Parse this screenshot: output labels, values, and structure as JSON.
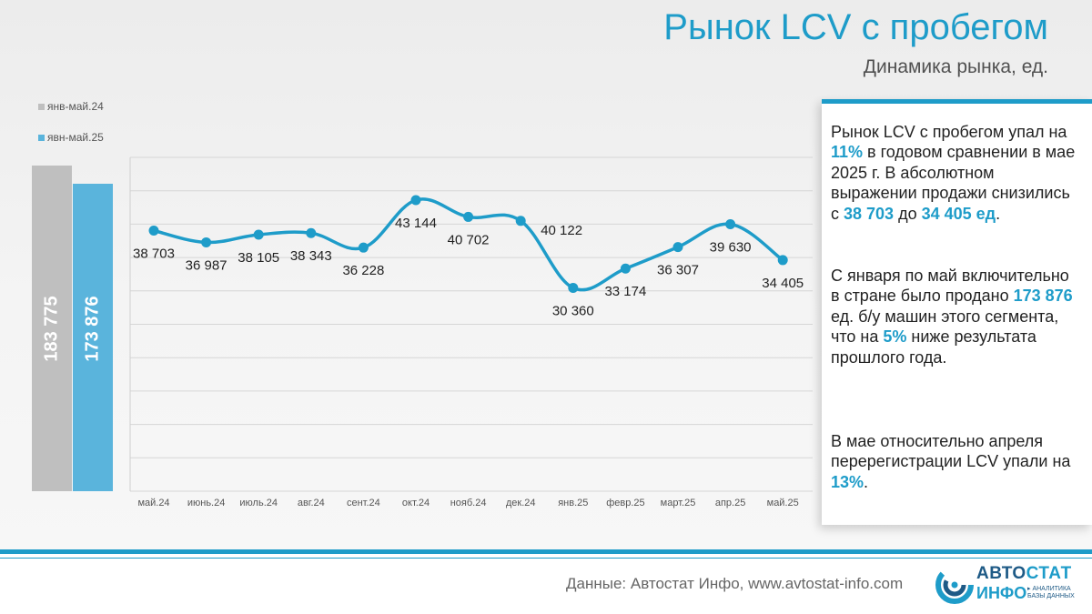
{
  "header": {
    "title": "Рынок LCV с пробегом",
    "subtitle": "Динамика рынка, ед."
  },
  "ytd": {
    "legend": [
      {
        "label": "янв-май.24",
        "color": "#bfbfbf"
      },
      {
        "label": "явн-май.25",
        "color": "#5ab4dc"
      }
    ],
    "bars": [
      {
        "label": "183 775",
        "value": 183775,
        "color": "#bfbfbf"
      },
      {
        "label": "173 876",
        "value": 173876,
        "color": "#5ab4dc"
      }
    ]
  },
  "chart_data": {
    "type": "line",
    "categories": [
      "май.24",
      "июнь.24",
      "июль.24",
      "авг.24",
      "сент.24",
      "окт.24",
      "нояб.24",
      "дек.24",
      "янв.25",
      "февр.25",
      "март.25",
      "апр.25",
      "май.25"
    ],
    "values": [
      38703,
      36987,
      38105,
      38343,
      36228,
      43144,
      40702,
      40122,
      30360,
      33174,
      36307,
      39630,
      34405
    ],
    "value_labels": [
      "38 703",
      "36 987",
      "38 105",
      "38 343",
      "36 228",
      "43 144",
      "40 702",
      "40 122",
      "30 360",
      "33 174",
      "36 307",
      "39 630",
      "34 405"
    ],
    "color": "#1e9cc9",
    "smooth": true,
    "grid": true,
    "ylim": [
      0,
      50000
    ]
  },
  "panel": {
    "p1": [
      "Рынок LCV с пробегом упал на ",
      "11%",
      " в годовом сравнении в мае 2025 г. В абсолютном выражении продажи снизились с ",
      "38 703",
      " до ",
      "34 405 ед",
      "."
    ],
    "p2": [
      "С января по май включительно в стране было продано ",
      "173 876",
      " ед. б/у машин этого сегмента, что на ",
      "5%",
      " ниже результата прошлого года."
    ],
    "p3": [
      "В мае относительно апреля перерегистрации LCV упали на ",
      "13%",
      "."
    ]
  },
  "footer": {
    "source": "Данные: Автостат Инфо, www.avtostat-info.com",
    "logo_top_dark": "АВТО",
    "logo_top_light": "СТАТ",
    "logo_bottom": "ИНФО",
    "logo_tagline": "▸ АНАЛИТИКА БАЗЫ ДАННЫХ"
  }
}
